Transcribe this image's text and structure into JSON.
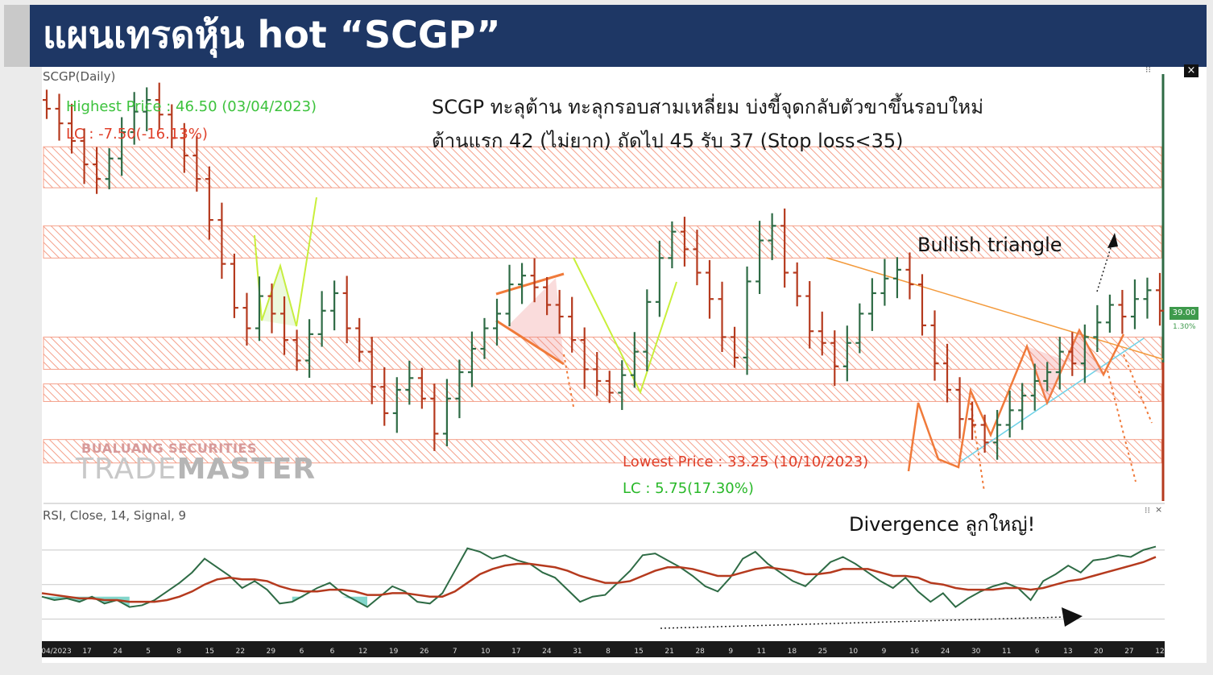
{
  "banner": {
    "title": "แผนเทรดหุ้น hot “SCGP”"
  },
  "price_panel": {
    "label": "SCGP(Daily)",
    "highest_price": "Highest Price : 46.50 (03/04/2023)",
    "lc_top": "LC : -7.50(-16.13%)",
    "lowest_price": "Lowest Price : 33.25 (10/10/2023)",
    "lc_bottom": "LC : 5.75(17.30%)",
    "last_price_tag": "39.00",
    "last_pct_tag": "1.30%",
    "close_label": "×"
  },
  "annotations": {
    "line1": "SCGP ทะลุต้าน ทะลุกรอบสามเหลี่ยม บ่งขี้จุดกลับตัวขาขึ้นรอบใหม่",
    "line2": "ต้านแรก 42 (ไม่ยาก) ถัดไป 45 รับ 37 (Stop loss<35)",
    "bullish": "Bullish triangle",
    "divergence": "Divergence ลูกใหญ่!"
  },
  "logo": {
    "top": "BUALUANG SECURITIES",
    "trade": "TRADE",
    "master": "MASTER"
  },
  "rsi_panel": {
    "label": "RSI, Close, 14, Signal, 9"
  },
  "colors": {
    "banner_bg": "#1e3765",
    "up_bar": "#2e6b45",
    "down_bar": "#b53a1e",
    "resistance_zone": "#f4a08a",
    "rsi_line": "#2e6b45",
    "signal_line": "#b53a1e",
    "rsi_fill": "#4fc4b5"
  },
  "chart_data": [
    {
      "type": "ohlc",
      "title": "SCGP(Daily)",
      "x_axis_ticks": [
        "04/2023",
        "17",
        "24",
        "5",
        "8",
        "15",
        "22",
        "29",
        "6",
        "6",
        "12",
        "19",
        "26",
        "7",
        "10",
        "17",
        "24",
        "31",
        "8",
        "15",
        "21",
        "28",
        "9",
        "11",
        "18",
        "25",
        "10",
        "9",
        "16",
        "24",
        "30",
        "11",
        "6",
        "13",
        "20",
        "27",
        "12"
      ],
      "support_resistance_zones": [
        [
          43.2,
          44.6
        ],
        [
          40.8,
          41.9
        ],
        [
          37.0,
          38.1
        ],
        [
          35.9,
          36.5
        ],
        [
          33.8,
          34.6
        ]
      ],
      "close_series": [
        45.9,
        45.4,
        44.8,
        44.0,
        43.5,
        44.2,
        45.1,
        45.8,
        46.2,
        45.7,
        44.9,
        44.3,
        43.5,
        42.1,
        40.6,
        39.1,
        38.4,
        39.5,
        38.9,
        38.0,
        37.3,
        38.2,
        39.0,
        39.6,
        38.4,
        37.6,
        36.4,
        35.5,
        36.3,
        36.7,
        36.0,
        34.8,
        36.0,
        36.9,
        37.7,
        38.4,
        38.9,
        39.9,
        40.2,
        39.8,
        39.2,
        38.8,
        38.0,
        37.0,
        36.6,
        36.2,
        36.8,
        37.6,
        39.3,
        40.8,
        41.7,
        41.1,
        40.3,
        39.4,
        38.1,
        37.4,
        40.0,
        41.4,
        41.9,
        40.3,
        39.5,
        38.3,
        37.9,
        37.1,
        37.9,
        38.9,
        39.6,
        40.1,
        40.4,
        39.9,
        38.5,
        37.2,
        36.3,
        35.3,
        35.1,
        34.5,
        35.1,
        35.6,
        36.1,
        36.6,
        36.9,
        37.6,
        37.2,
        38.1,
        38.6,
        39.2,
        38.8,
        39.4,
        39.7,
        39.0
      ],
      "lowest_price": 33.25,
      "highest_price": 46.5,
      "last_price": 39.0
    },
    {
      "type": "line",
      "title": "RSI, Close, 14, Signal, 9",
      "series": [
        {
          "name": "RSI",
          "values": [
            43,
            41,
            42,
            40,
            43,
            39,
            41,
            37,
            38,
            41,
            46,
            51,
            57,
            65,
            60,
            55,
            48,
            52,
            47,
            39,
            40,
            44,
            48,
            51,
            45,
            41,
            37,
            43,
            49,
            46,
            40,
            39,
            45,
            58,
            71,
            69,
            65,
            67,
            64,
            62,
            57,
            54,
            47,
            40,
            43,
            44,
            51,
            58,
            67,
            68,
            64,
            60,
            55,
            49,
            46,
            54,
            65,
            69,
            62,
            57,
            52,
            49,
            56,
            63,
            66,
            62,
            57,
            52,
            48,
            54,
            46,
            40,
            45,
            37,
            42,
            46,
            49,
            51,
            48,
            41,
            52,
            56,
            61,
            57,
            64,
            65,
            67,
            66,
            70,
            72
          ]
        },
        {
          "name": "Signal",
          "values": [
            45,
            44,
            43,
            42,
            42,
            41,
            41,
            40,
            40,
            40,
            41,
            43,
            46,
            50,
            53,
            54,
            53,
            53,
            52,
            49,
            47,
            46,
            46,
            47,
            47,
            46,
            44,
            44,
            45,
            45,
            44,
            43,
            43,
            46,
            51,
            56,
            59,
            61,
            62,
            62,
            61,
            60,
            58,
            55,
            53,
            51,
            51,
            52,
            55,
            58,
            60,
            60,
            59,
            57,
            55,
            55,
            57,
            59,
            60,
            59,
            58,
            56,
            56,
            57,
            59,
            59,
            59,
            57,
            55,
            55,
            54,
            51,
            50,
            48,
            47,
            47,
            47,
            48,
            48,
            47,
            48,
            50,
            52,
            53,
            55,
            57,
            59,
            61,
            63,
            66
          ]
        }
      ],
      "reference_levels": [
        30,
        50,
        70
      ]
    }
  ]
}
